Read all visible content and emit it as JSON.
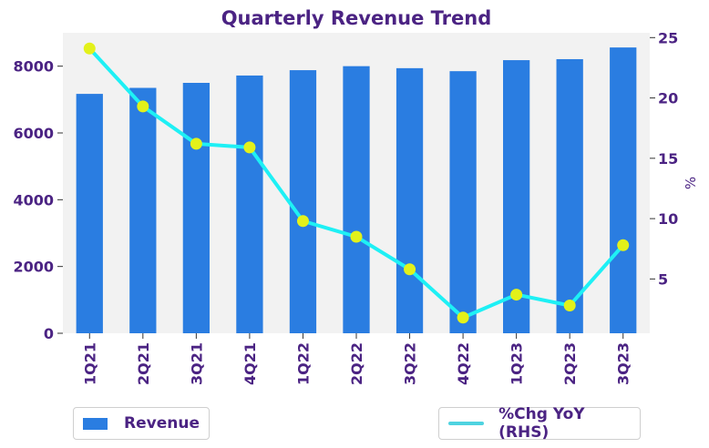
{
  "chart_data": {
    "type": "bar",
    "title": "Quarterly Revenue Trend",
    "categories": [
      "1Q21",
      "2Q21",
      "3Q21",
      "4Q21",
      "1Q22",
      "2Q22",
      "3Q22",
      "4Q22",
      "1Q23",
      "2Q23",
      "3Q23"
    ],
    "series": [
      {
        "name": "Revenue",
        "type": "bar",
        "axis": "left",
        "color": "#2a7de1",
        "values": [
          7170,
          7350,
          7500,
          7720,
          7880,
          8000,
          7940,
          7850,
          8180,
          8210,
          8560
        ]
      },
      {
        "name": "%Chg YoY (RHS)",
        "type": "line",
        "axis": "right",
        "color": "#1ef0f5",
        "marker_color": "#e3f11a",
        "values": [
          24.1,
          19.3,
          16.2,
          15.9,
          9.8,
          8.5,
          5.8,
          1.8,
          3.7,
          2.8,
          7.8
        ]
      }
    ],
    "ylim_left": [
      0,
      9000
    ],
    "yticks_left": [
      "0",
      "2000",
      "4000",
      "6000",
      "8000"
    ],
    "ylim_right": [
      0.5,
      25.4
    ],
    "yticks_right": [
      "5",
      "10",
      "15",
      "20",
      "25"
    ],
    "ylabel_right": "%",
    "xlabel": "",
    "ylabel": "",
    "grid": false,
    "legend_placement": "bottom"
  }
}
